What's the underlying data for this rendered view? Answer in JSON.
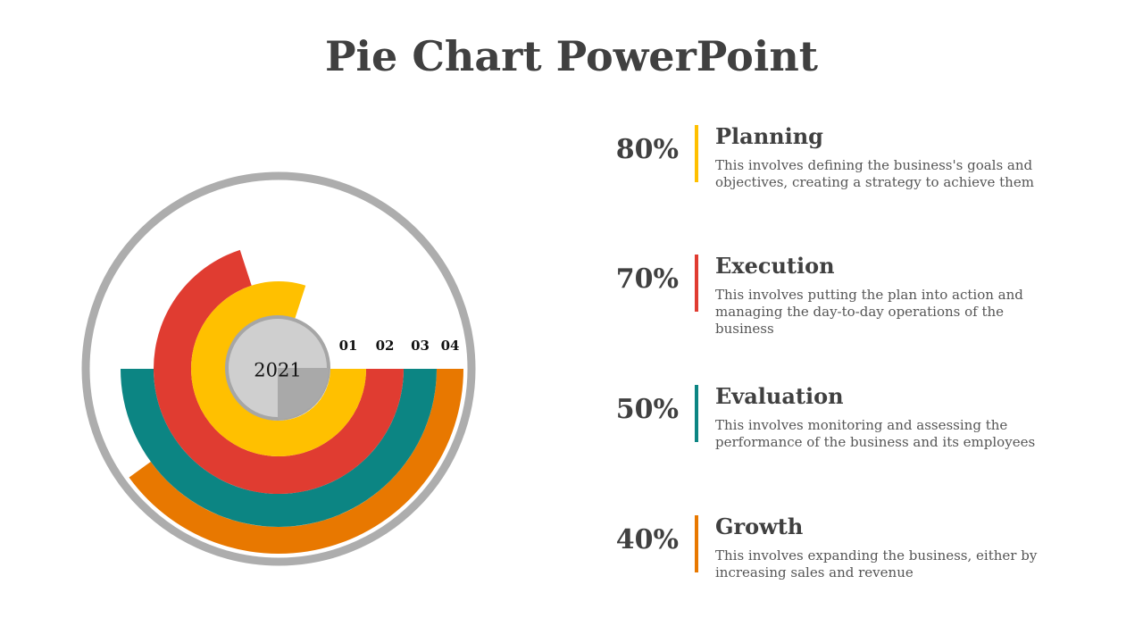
{
  "title": "Pie Chart PowerPoint",
  "chart": {
    "center_label": "2021",
    "ring_labels": [
      "01",
      "02",
      "03",
      "04"
    ]
  },
  "chart_data": {
    "type": "radial_bar",
    "title": "Pie Chart PowerPoint",
    "center_label": "2021",
    "series": [
      {
        "label": "01",
        "name": "Planning",
        "value": 80,
        "color": "#FFC000"
      },
      {
        "label": "02",
        "name": "Execution",
        "value": 70,
        "color": "#E03C31"
      },
      {
        "label": "03",
        "name": "Evaluation",
        "value": 50,
        "color": "#0C8583"
      },
      {
        "label": "04",
        "name": "Growth",
        "value": 40,
        "color": "#E87800"
      }
    ]
  },
  "items": [
    {
      "pct": "80%",
      "title": "Planning",
      "desc": "This involves defining the business's goals and objectives, creating a strategy to achieve them",
      "color": "#FFC000"
    },
    {
      "pct": "70%",
      "title": "Execution",
      "desc": "This involves putting the plan into action and managing the day-to-day operations of the business",
      "color": "#E03C31"
    },
    {
      "pct": "50%",
      "title": "Evaluation",
      "desc": "This involves monitoring and assessing the performance of the business and its employees",
      "color": "#0C8583"
    },
    {
      "pct": "40%",
      "title": "Growth",
      "desc": "This involves expanding the business, either by increasing sales and revenue",
      "color": "#E87800"
    }
  ]
}
